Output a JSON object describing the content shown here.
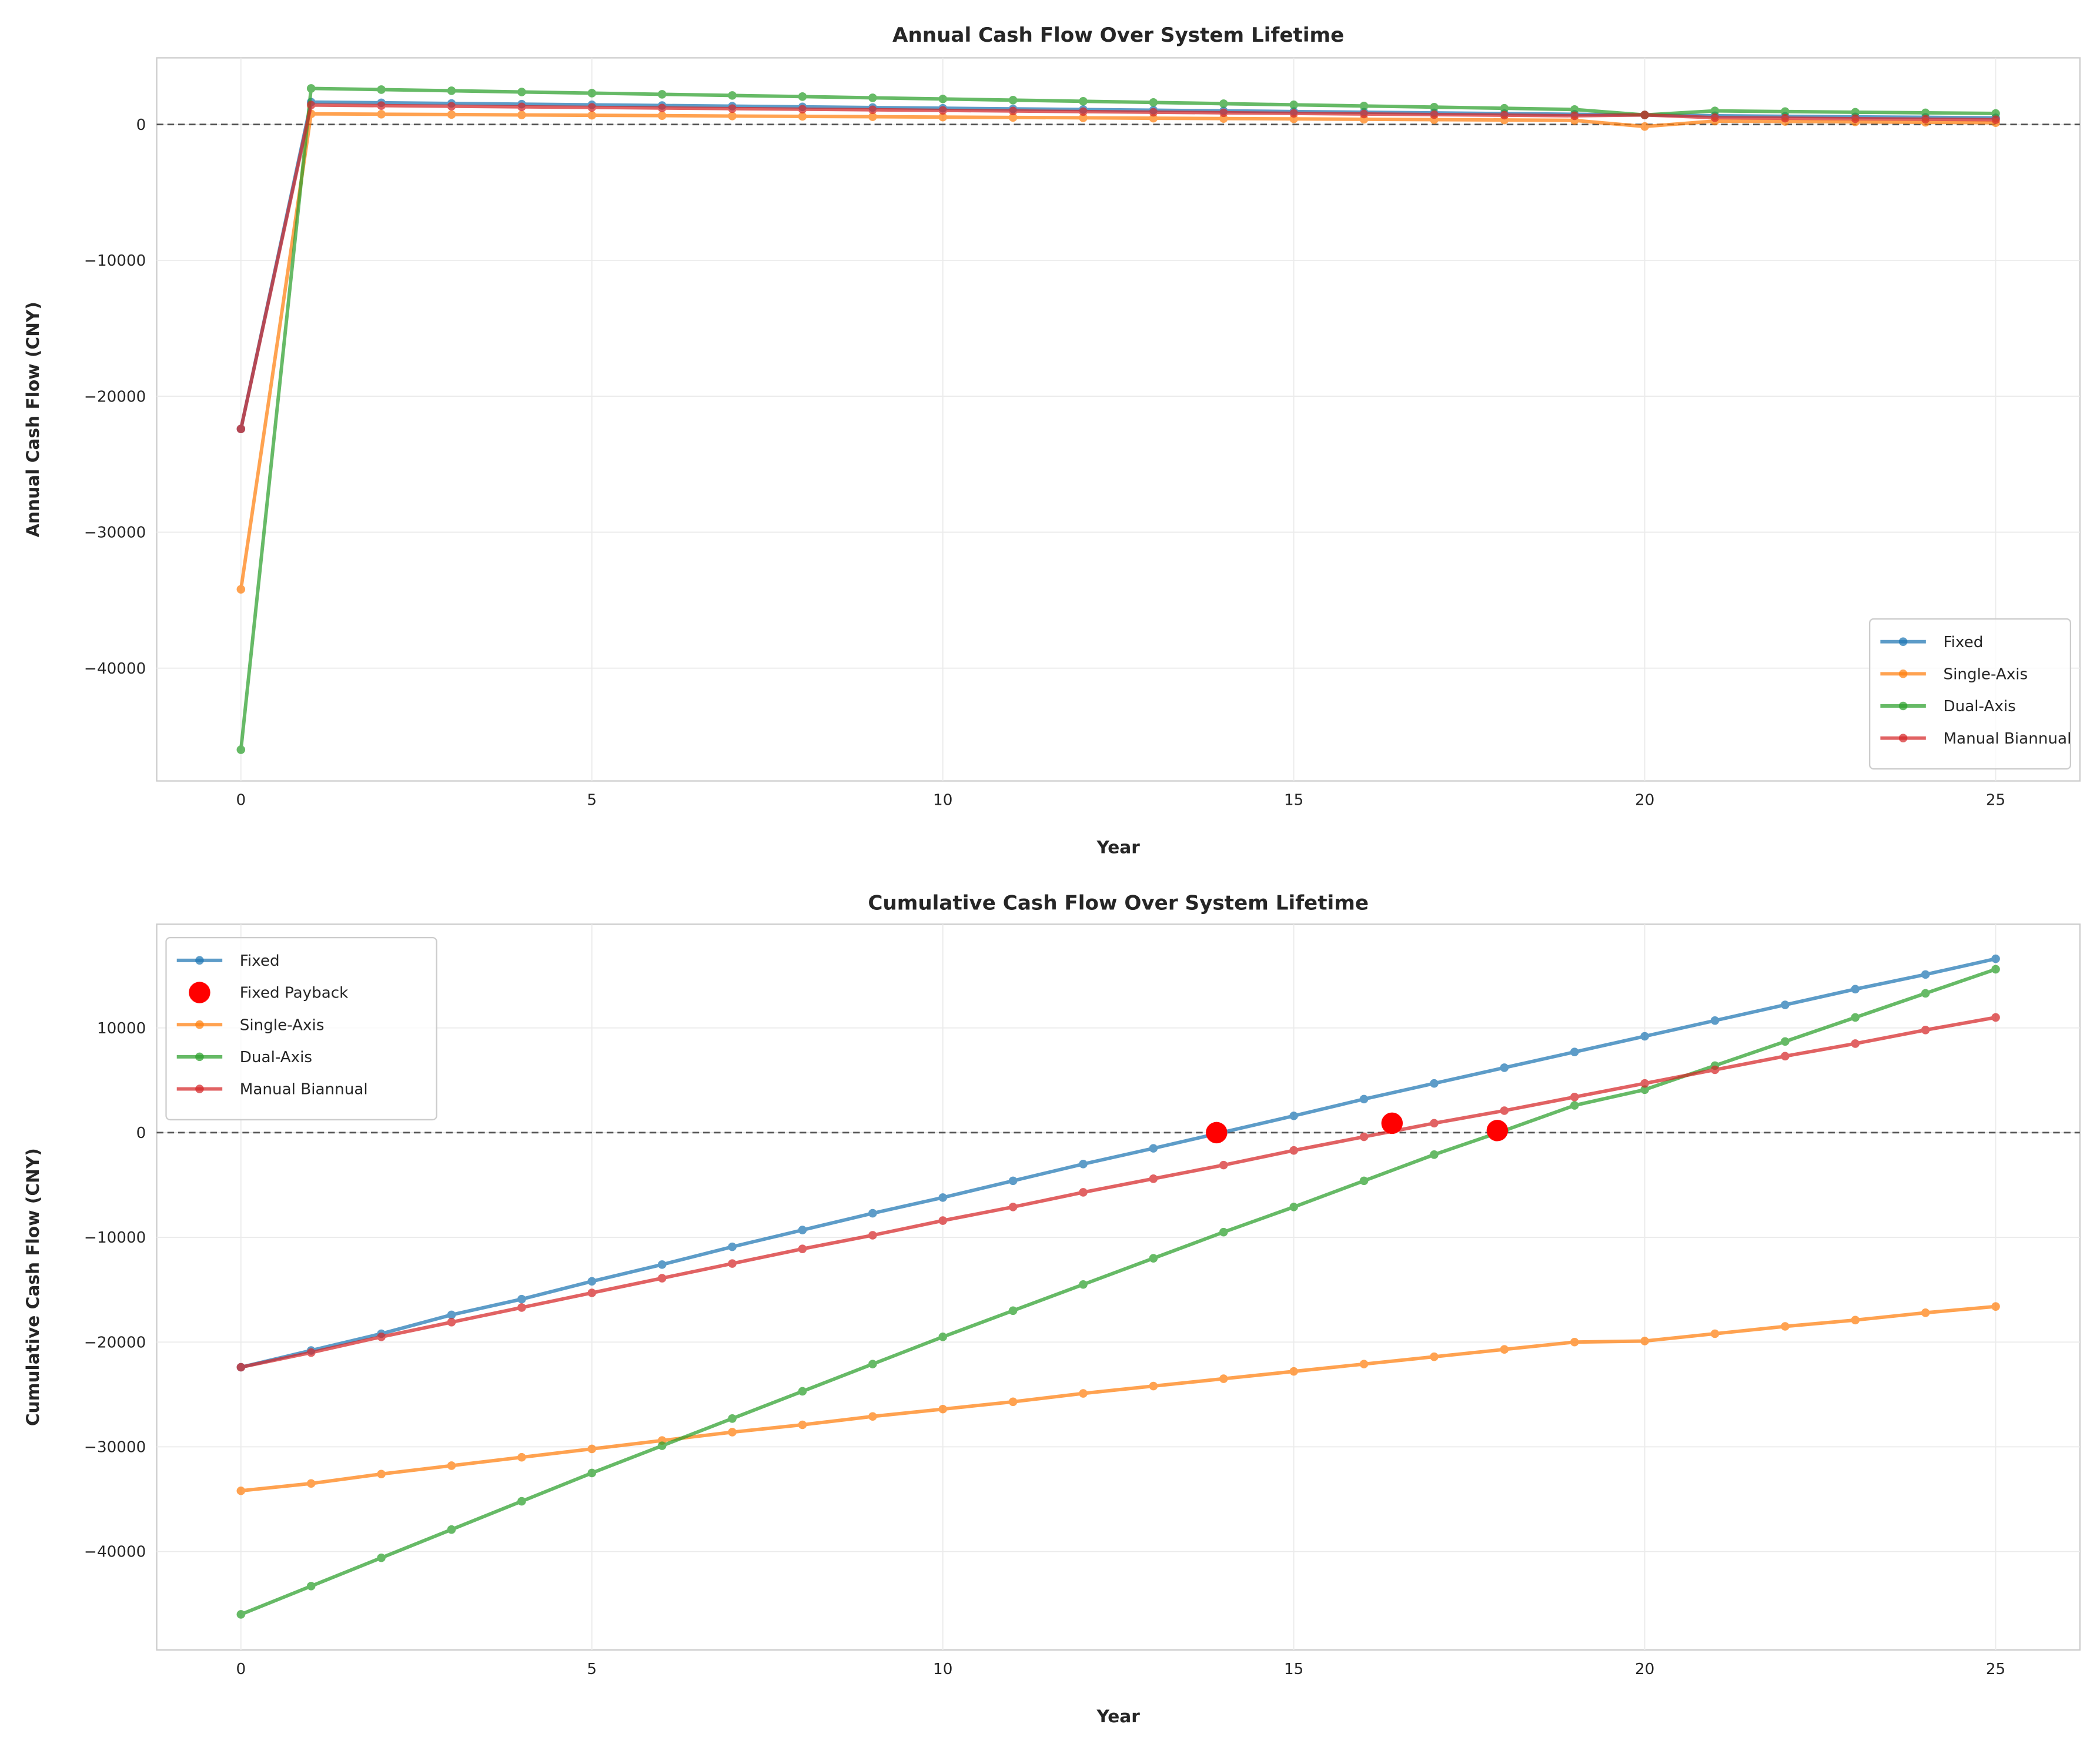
{
  "colors": {
    "Fixed": "#1f77b4",
    "Single-Axis": "#ff7f0e",
    "Dual-Axis": "#2ca02c",
    "Manual Biannual": "#d62728",
    "payback": "#ff0000",
    "zero_line": "#555555"
  },
  "chart_data": [
    {
      "type": "line",
      "title": "Annual Cash Flow Over System Lifetime",
      "xlabel": "Year",
      "ylabel": "Annual Cash Flow (CNY)",
      "xlim": [
        -1.2,
        26.2
      ],
      "ylim": [
        -48300,
        4900
      ],
      "xticks": [
        0,
        5,
        10,
        15,
        20,
        25
      ],
      "yticks": [
        0,
        -10000,
        -20000,
        -30000,
        -40000
      ],
      "grid": true,
      "legend_position": "bottom-right",
      "reference_line": {
        "y": 0,
        "style": "dashed"
      },
      "x": [
        0,
        1,
        2,
        3,
        4,
        5,
        6,
        7,
        8,
        9,
        10,
        11,
        12,
        13,
        14,
        15,
        16,
        17,
        18,
        19,
        20,
        21,
        22,
        23,
        24,
        25
      ],
      "series": [
        {
          "name": "Fixed",
          "values": [
            -22400,
            1645,
            1595,
            1545,
            1495,
            1445,
            1395,
            1345,
            1295,
            1245,
            1195,
            1145,
            1100,
            1050,
            1000,
            950,
            900,
            850,
            800,
            750,
            700,
            640,
            600,
            560,
            525,
            490
          ]
        },
        {
          "name": "Single-Axis",
          "values": [
            -34200,
            780,
            755,
            730,
            700,
            675,
            650,
            620,
            595,
            570,
            540,
            515,
            490,
            460,
            435,
            410,
            380,
            355,
            330,
            300,
            -150,
            250,
            220,
            190,
            160,
            130
          ]
        },
        {
          "name": "Dual-Axis",
          "values": [
            -46000,
            2650,
            2565,
            2480,
            2390,
            2305,
            2220,
            2135,
            2050,
            1960,
            1875,
            1790,
            1705,
            1620,
            1530,
            1445,
            1360,
            1275,
            1190,
            1100,
            700,
            1000,
            950,
            900,
            855,
            810
          ]
        },
        {
          "name": "Manual Biannual",
          "values": [
            -22400,
            1430,
            1385,
            1340,
            1295,
            1255,
            1210,
            1165,
            1120,
            1080,
            1035,
            990,
            945,
            900,
            860,
            815,
            770,
            725,
            685,
            640,
            700,
            500,
            460,
            425,
            385,
            350
          ]
        }
      ]
    },
    {
      "type": "line",
      "title": "Cumulative Cash Flow Over System Lifetime",
      "xlabel": "Year",
      "ylabel": "Cumulative Cash Flow (CNY)",
      "xlim": [
        -1.2,
        26.2
      ],
      "ylim": [
        -49400,
        19900
      ],
      "xticks": [
        0,
        5,
        10,
        15,
        20,
        25
      ],
      "yticks": [
        10000,
        0,
        -10000,
        -20000,
        -30000,
        -40000
      ],
      "grid": true,
      "legend_position": "top-left",
      "reference_line": {
        "y": 0,
        "style": "dashed"
      },
      "x": [
        0,
        1,
        2,
        3,
        4,
        5,
        6,
        7,
        8,
        9,
        10,
        11,
        12,
        13,
        14,
        15,
        16,
        17,
        18,
        19,
        20,
        21,
        22,
        23,
        24,
        25
      ],
      "series": [
        {
          "name": "Fixed",
          "values": [
            -22400,
            -20800,
            -19200,
            -17400,
            -15900,
            -14200,
            -12600,
            -10900,
            -9300,
            -7700,
            -6200,
            -4600,
            -3000,
            -1500,
            50,
            1600,
            3200,
            4700,
            6200,
            7700,
            9200,
            10700,
            12200,
            13700,
            15100,
            16600
          ]
        },
        {
          "name": "Single-Axis",
          "values": [
            -34200,
            -33500,
            -32600,
            -31800,
            -31000,
            -30200,
            -29400,
            -28600,
            -27900,
            -27100,
            -26400,
            -25700,
            -24900,
            -24200,
            -23500,
            -22800,
            -22100,
            -21400,
            -20700,
            -20000,
            -19900,
            -19200,
            -18500,
            -17900,
            -17200,
            -16600
          ]
        },
        {
          "name": "Dual-Axis",
          "values": [
            -46000,
            -43300,
            -40600,
            -37900,
            -35200,
            -32500,
            -29900,
            -27300,
            -24700,
            -22100,
            -19500,
            -17000,
            -14500,
            -12000,
            -9500,
            -7100,
            -4600,
            -2100,
            200,
            2600,
            4100,
            6400,
            8700,
            11000,
            13300,
            15600
          ]
        },
        {
          "name": "Manual Biannual",
          "values": [
            -22400,
            -21000,
            -19500,
            -18100,
            -16700,
            -15300,
            -13900,
            -12500,
            -11100,
            -9800,
            -8400,
            -7100,
            -5700,
            -4400,
            -3100,
            -1700,
            -400,
            900,
            2100,
            3400,
            4700,
            6000,
            7300,
            8500,
            9800,
            11000
          ]
        }
      ],
      "payback_points": {
        "name": "Fixed Payback",
        "points": [
          [
            13.9,
            0
          ],
          [
            16.4,
            900
          ],
          [
            17.9,
            200
          ]
        ]
      },
      "legend_entries": [
        "Fixed",
        "Fixed Payback",
        "Single-Axis",
        "Dual-Axis",
        "Manual Biannual"
      ]
    }
  ]
}
